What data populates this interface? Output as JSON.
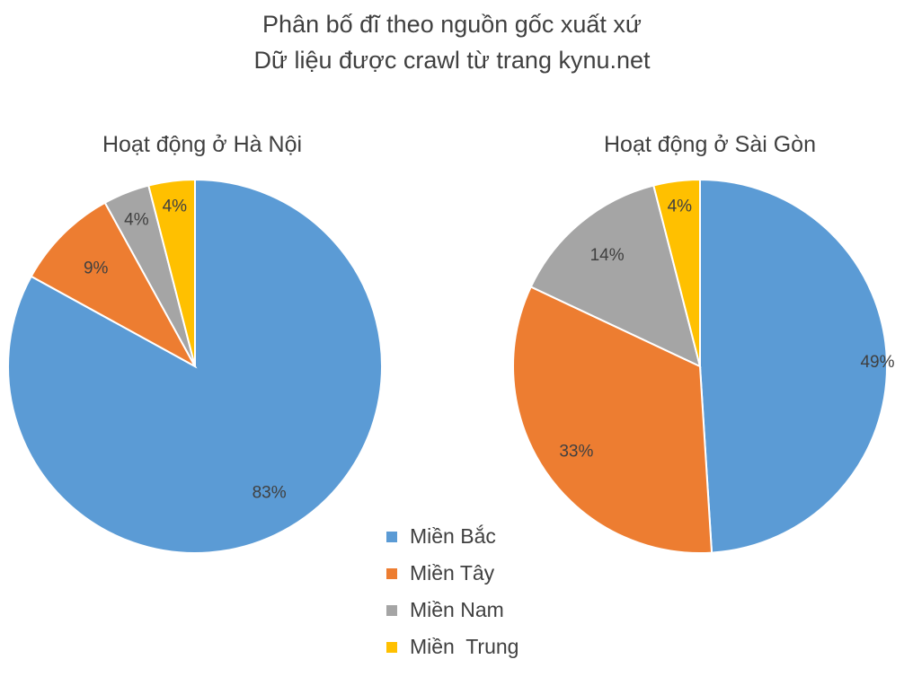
{
  "chart": {
    "title": "Phân bố đĩ theo nguồn gốc xuất xứ",
    "subtitle": "Dữ liệu được crawl từ trang kynu.net"
  },
  "chart_data": [
    {
      "type": "pie",
      "title": "Hoạt động ở Hà Nội",
      "categories": [
        "Miền Bắc",
        "Miền Tây",
        "Miền Nam",
        "Miền  Trung"
      ],
      "values": [
        83,
        9,
        4,
        4
      ],
      "labels": [
        "83%",
        "9%",
        "4%",
        "4%"
      ],
      "colors": [
        "#5b9bd5",
        "#ed7d31",
        "#a5a5a5",
        "#ffc000"
      ]
    },
    {
      "type": "pie",
      "title": "Hoạt động ở Sài Gòn",
      "categories": [
        "Miền Bắc",
        "Miền Tây",
        "Miền Nam",
        "Miền  Trung"
      ],
      "values": [
        49,
        33,
        14,
        4
      ],
      "labels": [
        "49%",
        "33%",
        "14%",
        "4%"
      ],
      "colors": [
        "#5b9bd5",
        "#ed7d31",
        "#a5a5a5",
        "#ffc000"
      ]
    }
  ],
  "legend": {
    "placement": "bottom-center",
    "items": [
      {
        "label": "Miền Bắc",
        "color": "#5b9bd5"
      },
      {
        "label": "Miền Tây",
        "color": "#ed7d31"
      },
      {
        "label": "Miền Nam",
        "color": "#a5a5a5"
      },
      {
        "label": "Miền  Trung",
        "color": "#ffc000"
      }
    ]
  }
}
